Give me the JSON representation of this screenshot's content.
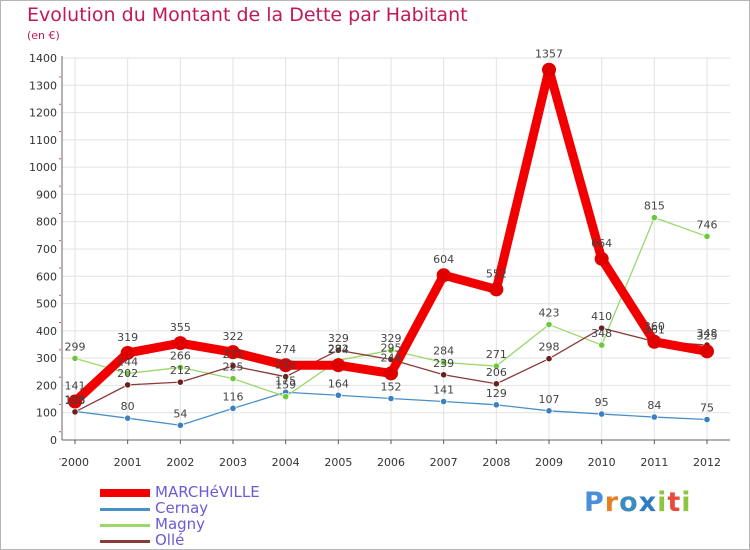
{
  "title": "Evolution du Montant de la Dette par Habitant",
  "unit_label": "(en €)",
  "logo": {
    "text": "Proxiti",
    "letters": [
      {
        "ch": "P",
        "color": "#4a90d9"
      },
      {
        "ch": "r",
        "color": "#e67e22"
      },
      {
        "ch": "o",
        "color": "#3c8dbc"
      },
      {
        "ch": "x",
        "color": "#2e7dc2"
      },
      {
        "ch": "i",
        "color": "#8cc63f"
      },
      {
        "ch": "t",
        "color": "#e74c3c"
      },
      {
        "ch": "i",
        "color": "#8cc63f"
      }
    ]
  },
  "chart_data": {
    "type": "line",
    "x": [
      "2000",
      "2001",
      "2002",
      "2003",
      "2004",
      "2005",
      "2006",
      "2007",
      "2008",
      "2009",
      "2010",
      "2011",
      "2012"
    ],
    "ylim": [
      0,
      1400
    ],
    "yticks": [
      "0",
      "100",
      "200",
      "300",
      "400",
      "500",
      "600",
      "700",
      "800",
      "900",
      "1000",
      "1100",
      "1200",
      "1300",
      "1400"
    ],
    "grid": true,
    "legend_position": "bottom-left",
    "series": [
      {
        "name": "Cernay",
        "color": "#4a90c8",
        "dot": "#3a7fc0",
        "width": 1.3,
        "values": [
          105,
          80,
          54,
          116,
          175,
          164,
          152,
          141,
          129,
          107,
          95,
          84,
          75
        ],
        "labels": [
          "105",
          "80",
          "54",
          "116",
          "175",
          "164",
          "152",
          "141",
          "129",
          "107",
          "95",
          "84",
          "75"
        ]
      },
      {
        "name": "Magny",
        "color": "#9ad86a",
        "dot": "#6cc73c",
        "width": 1.3,
        "values": [
          299,
          244,
          266,
          225,
          159,
          292,
          329,
          284,
          271,
          423,
          348,
          815,
          746
        ],
        "labels": [
          "299",
          "244",
          "266",
          "225",
          "159",
          "292",
          "329",
          "284",
          "271",
          "423",
          "348",
          "815",
          "746"
        ]
      },
      {
        "name": "Ollé",
        "color": "#8b3a3a",
        "dot": "#6b1f1f",
        "width": 1.3,
        "values": [
          103,
          202,
          212,
          271,
          232,
          329,
          295,
          239,
          206,
          298,
          410,
          361,
          348
        ],
        "labels": [
          "103",
          "202",
          "212",
          "271",
          "232",
          "329",
          "295",
          "239",
          "206",
          "298",
          "410",
          "361",
          "348"
        ]
      },
      {
        "name": "MARCHéVILLE",
        "color": "#f20000",
        "dot": "#e00000",
        "width": 9,
        "values": [
          141,
          319,
          355,
          322,
          274,
          274,
          244,
          604,
          552,
          1357,
          664,
          360,
          325
        ],
        "labels": [
          "141",
          "319",
          "355",
          "322",
          "274",
          "274",
          "244",
          "604",
          "552",
          "1357",
          "664",
          "360",
          "325"
        ]
      }
    ],
    "legend": [
      {
        "name": "MARCHéVILLE",
        "color": "#f20000",
        "text_color": "#6b5bd6",
        "thickness": 8
      },
      {
        "name": "Cernay",
        "color": "#4a90c8",
        "text_color": "#6b5bd6",
        "thickness": 3
      },
      {
        "name": "Magny",
        "color": "#9ad86a",
        "text_color": "#6b5bd6",
        "thickness": 3
      },
      {
        "name": "Ollé",
        "color": "#8b3a3a",
        "text_color": "#6b5bd6",
        "thickness": 3
      }
    ]
  }
}
